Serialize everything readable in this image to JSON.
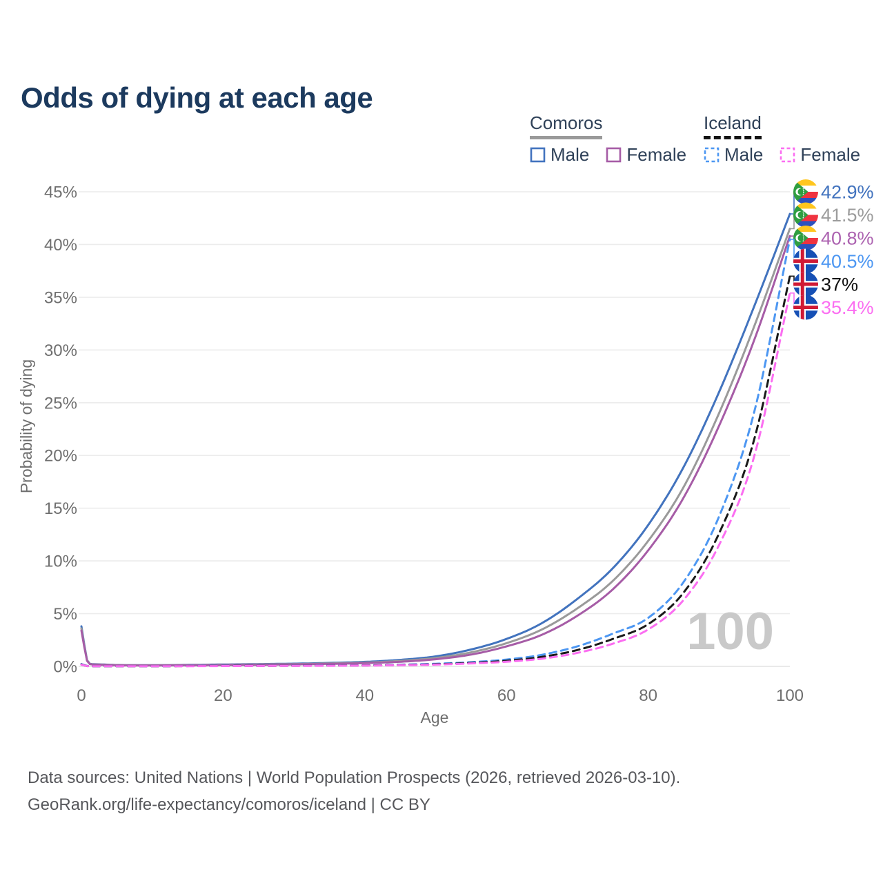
{
  "title": "Odds of dying at each age",
  "legend": {
    "groups": [
      {
        "label": "Comoros",
        "style": "solid",
        "items": [
          {
            "label": "Male"
          },
          {
            "label": "Female"
          }
        ]
      },
      {
        "label": "Iceland",
        "style": "dashed",
        "items": [
          {
            "label": "Male"
          },
          {
            "label": "Female"
          }
        ]
      }
    ]
  },
  "footer": {
    "line1": "Data sources: United Nations | World Population Prospects (2026, retrieved 2026-03-10).",
    "line2": "GeoRank.org/life-expectancy/comoros/iceland | CC BY"
  },
  "chart_data": {
    "type": "line",
    "title": "Odds of dying at each age",
    "xlabel": "Age",
    "ylabel": "Probability of dying",
    "xlim": [
      0,
      100
    ],
    "ylim": [
      0,
      45
    ],
    "x_tick_values": [
      0,
      20,
      40,
      60,
      80,
      100
    ],
    "x_tick_labels": [
      "0",
      "20",
      "40",
      "60",
      "80",
      "100"
    ],
    "y_tick_values": [
      0,
      5,
      10,
      15,
      20,
      25,
      30,
      35,
      40,
      45
    ],
    "y_tick_labels": [
      "0%",
      "5%",
      "10%",
      "15%",
      "20%",
      "25%",
      "30%",
      "35%",
      "40%",
      "45%"
    ],
    "grid": "horizontal",
    "legend_position": "top-right",
    "watermark": "100",
    "series": [
      {
        "name": "Comoros male",
        "country": "Comoros",
        "sex": "male",
        "line": "solid",
        "color": "#4273BE",
        "label_color": "#4273BE",
        "flag": "comoros",
        "end_label": "42.9%",
        "points": [
          [
            0,
            3.8
          ],
          [
            1,
            0.3
          ],
          [
            2,
            0.2
          ],
          [
            5,
            0.13
          ],
          [
            10,
            0.11
          ],
          [
            15,
            0.14
          ],
          [
            20,
            0.18
          ],
          [
            25,
            0.22
          ],
          [
            30,
            0.26
          ],
          [
            35,
            0.33
          ],
          [
            40,
            0.43
          ],
          [
            45,
            0.62
          ],
          [
            50,
            0.95
          ],
          [
            55,
            1.6
          ],
          [
            60,
            2.6
          ],
          [
            65,
            4.1
          ],
          [
            70,
            6.4
          ],
          [
            75,
            9.3
          ],
          [
            80,
            13.4
          ],
          [
            85,
            18.9
          ],
          [
            90,
            26.0
          ],
          [
            95,
            34.2
          ],
          [
            100,
            42.9
          ]
        ]
      },
      {
        "name": "Comoros both sexes",
        "country": "Comoros",
        "sex": "both",
        "line": "solid",
        "color": "#9A9A9A",
        "label_color": "#9C9C9C",
        "flag": "comoros",
        "end_label": "41.5%",
        "points": [
          [
            0,
            3.6
          ],
          [
            1,
            0.28
          ],
          [
            2,
            0.18
          ],
          [
            5,
            0.12
          ],
          [
            10,
            0.1
          ],
          [
            15,
            0.12
          ],
          [
            20,
            0.15
          ],
          [
            25,
            0.19
          ],
          [
            30,
            0.22
          ],
          [
            35,
            0.28
          ],
          [
            40,
            0.36
          ],
          [
            45,
            0.52
          ],
          [
            50,
            0.8
          ],
          [
            55,
            1.33
          ],
          [
            60,
            2.2
          ],
          [
            65,
            3.5
          ],
          [
            70,
            5.5
          ],
          [
            75,
            8.1
          ],
          [
            80,
            11.9
          ],
          [
            85,
            17.0
          ],
          [
            90,
            24.0
          ],
          [
            95,
            32.3
          ],
          [
            100,
            41.5
          ]
        ]
      },
      {
        "name": "Comoros female",
        "country": "Comoros",
        "sex": "female",
        "line": "solid",
        "color": "#A65CA6",
        "label_color": "#AC62B0",
        "flag": "comoros",
        "end_label": "40.8%",
        "points": [
          [
            0,
            3.4
          ],
          [
            1,
            0.26
          ],
          [
            2,
            0.17
          ],
          [
            5,
            0.11
          ],
          [
            10,
            0.09
          ],
          [
            15,
            0.11
          ],
          [
            20,
            0.13
          ],
          [
            25,
            0.16
          ],
          [
            30,
            0.19
          ],
          [
            35,
            0.24
          ],
          [
            40,
            0.31
          ],
          [
            45,
            0.44
          ],
          [
            50,
            0.68
          ],
          [
            55,
            1.12
          ],
          [
            60,
            1.9
          ],
          [
            65,
            3.0
          ],
          [
            70,
            4.8
          ],
          [
            75,
            7.3
          ],
          [
            80,
            11.0
          ],
          [
            85,
            16.0
          ],
          [
            90,
            22.8
          ],
          [
            95,
            31.0
          ],
          [
            100,
            40.8
          ]
        ]
      },
      {
        "name": "Iceland male",
        "country": "Iceland",
        "sex": "male",
        "line": "dashed",
        "color": "#4D97F2",
        "label_color": "#4D97F2",
        "flag": "iceland",
        "end_label": "40.5%",
        "points": [
          [
            0,
            0.22
          ],
          [
            1,
            0.03
          ],
          [
            5,
            0.01
          ],
          [
            10,
            0.01
          ],
          [
            15,
            0.04
          ],
          [
            20,
            0.06
          ],
          [
            25,
            0.06
          ],
          [
            30,
            0.07
          ],
          [
            35,
            0.08
          ],
          [
            40,
            0.1
          ],
          [
            45,
            0.16
          ],
          [
            50,
            0.25
          ],
          [
            55,
            0.4
          ],
          [
            60,
            0.65
          ],
          [
            65,
            1.1
          ],
          [
            70,
            1.9
          ],
          [
            75,
            3.1
          ],
          [
            80,
            4.6
          ],
          [
            85,
            8.0
          ],
          [
            90,
            14.2
          ],
          [
            95,
            24.2
          ],
          [
            100,
            40.5
          ]
        ]
      },
      {
        "name": "Iceland both sexes",
        "country": "Iceland",
        "sex": "both",
        "line": "dashed",
        "color": "#1A1A1A",
        "label_color": "#111111",
        "flag": "iceland",
        "end_label": "37%",
        "points": [
          [
            0,
            0.18
          ],
          [
            1,
            0.02
          ],
          [
            5,
            0.01
          ],
          [
            10,
            0.01
          ],
          [
            15,
            0.03
          ],
          [
            20,
            0.04
          ],
          [
            25,
            0.05
          ],
          [
            30,
            0.06
          ],
          [
            35,
            0.07
          ],
          [
            40,
            0.09
          ],
          [
            45,
            0.13
          ],
          [
            50,
            0.2
          ],
          [
            55,
            0.33
          ],
          [
            60,
            0.53
          ],
          [
            65,
            0.9
          ],
          [
            70,
            1.55
          ],
          [
            75,
            2.6
          ],
          [
            80,
            4.0
          ],
          [
            85,
            7.0
          ],
          [
            90,
            12.6
          ],
          [
            95,
            21.6
          ],
          [
            100,
            37.0
          ]
        ]
      },
      {
        "name": "Iceland female",
        "country": "Iceland",
        "sex": "female",
        "line": "dashed",
        "color": "#FB6EF1",
        "label_color": "#FB6EF1",
        "flag": "iceland",
        "end_label": "35.4%",
        "points": [
          [
            0,
            0.16
          ],
          [
            1,
            0.02
          ],
          [
            5,
            0.01
          ],
          [
            10,
            0.01
          ],
          [
            15,
            0.02
          ],
          [
            20,
            0.03
          ],
          [
            25,
            0.04
          ],
          [
            30,
            0.05
          ],
          [
            35,
            0.06
          ],
          [
            40,
            0.08
          ],
          [
            45,
            0.11
          ],
          [
            50,
            0.17
          ],
          [
            55,
            0.28
          ],
          [
            60,
            0.44
          ],
          [
            65,
            0.73
          ],
          [
            70,
            1.28
          ],
          [
            75,
            2.15
          ],
          [
            80,
            3.5
          ],
          [
            85,
            6.3
          ],
          [
            90,
            11.5
          ],
          [
            95,
            20.0
          ],
          [
            100,
            35.4
          ]
        ]
      }
    ]
  }
}
